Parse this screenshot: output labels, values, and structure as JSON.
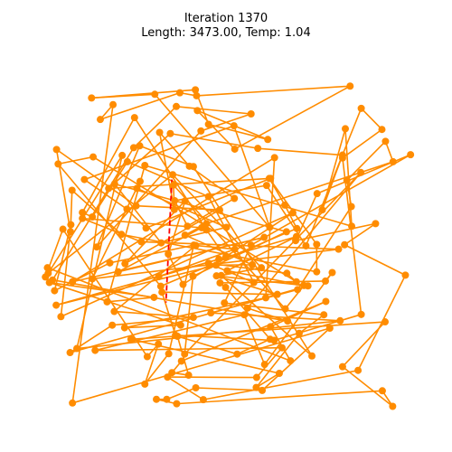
{
  "chart_data": {
    "type": "line",
    "title_line1": "Iteration 1370",
    "title_line2": "Length: 3473.00, Temp: 1.04",
    "route_color": "#ff8c00",
    "highlight_color": "#ff0000",
    "axes_visible": false,
    "xlim": [
      0,
      100
    ],
    "ylim": [
      0,
      100
    ],
    "tour_points": [
      [
        21.6,
        86.4
      ],
      [
        18.4,
        82.4
      ],
      [
        38.4,
        89.6
      ],
      [
        42.6,
        88.8
      ],
      [
        81.2,
        91.4
      ],
      [
        52.2,
        74.4
      ],
      [
        42.8,
        84.8
      ],
      [
        60.5,
        77.0
      ],
      [
        45.6,
        81.1
      ],
      [
        42.3,
        90.4
      ],
      [
        16.2,
        88.2
      ],
      [
        32.1,
        89.2
      ],
      [
        61.0,
        53.3
      ],
      [
        52.0,
        80.7
      ],
      [
        14.4,
        66.2
      ],
      [
        25.1,
        58.2
      ],
      [
        29.9,
        53.1
      ],
      [
        61.2,
        66.5
      ],
      [
        20.5,
        63.8
      ],
      [
        36.0,
        78.6
      ],
      [
        58.0,
        74.6
      ],
      [
        79.3,
        72.8
      ],
      [
        74.2,
        58.0
      ],
      [
        80.0,
        79.9
      ],
      [
        81.6,
        53.6
      ],
      [
        29.6,
        70.0
      ],
      [
        20.1,
        33.2
      ],
      [
        31.9,
        34.4
      ],
      [
        5.6,
        38.4
      ],
      [
        38.6,
        26.9
      ],
      [
        24.5,
        26.2
      ],
      [
        60.0,
        34.3
      ],
      [
        62.2,
        72.1
      ],
      [
        11.4,
        38.6
      ],
      [
        59.6,
        50.6
      ],
      [
        22.9,
        41.3
      ],
      [
        43.9,
        53.2
      ],
      [
        13.9,
        55.7
      ],
      [
        28.7,
        49.4
      ],
      [
        78.3,
        47.4
      ],
      [
        16.4,
        39.4
      ],
      [
        28.4,
        65.7
      ],
      [
        27.6,
        63.8
      ],
      [
        50.1,
        53.3
      ],
      [
        33.7,
        49.1
      ],
      [
        22.0,
        65.0
      ],
      [
        65.2,
        52.1
      ],
      [
        41.7,
        40.1
      ],
      [
        39.6,
        19.1
      ],
      [
        83.9,
        68.1
      ],
      [
        55.4,
        31.5
      ],
      [
        65.5,
        28.0
      ],
      [
        6.4,
        39.1
      ],
      [
        26.8,
        74.8
      ],
      [
        37.5,
        85.9
      ],
      [
        56.3,
        83.9
      ],
      [
        43.7,
        79.3
      ],
      [
        17.5,
        48.0
      ],
      [
        28.3,
        75.3
      ],
      [
        41.8,
        69.7
      ],
      [
        71.6,
        18.6
      ],
      [
        48.8,
        40.3
      ],
      [
        58.9,
        42.4
      ],
      [
        36.6,
        67.5
      ],
      [
        5.3,
        40.9
      ],
      [
        23.9,
        72.7
      ],
      [
        12.5,
        20.6
      ],
      [
        78.7,
        28.1
      ],
      [
        46.2,
        30.2
      ],
      [
        68.0,
        36.5
      ],
      [
        81.5,
        58.9
      ],
      [
        80.4,
        66.0
      ],
      [
        90.1,
        76.5
      ],
      [
        92.0,
        71.0
      ],
      [
        45.1,
        54.3
      ],
      [
        39.7,
        51.2
      ],
      [
        56.6,
        43.2
      ],
      [
        47.5,
        43.1
      ],
      [
        7.3,
        32.3
      ],
      [
        48.2,
        44.7
      ],
      [
        33.1,
        40.0
      ],
      [
        52.2,
        47.4
      ],
      [
        42.4,
        48.4
      ],
      [
        21.9,
        30.6
      ],
      [
        41.8,
        29.0
      ],
      [
        21.4,
        26.9
      ],
      [
        10.8,
        19.5
      ],
      [
        70.6,
        37.5
      ],
      [
        47.6,
        40.2
      ],
      [
        62.9,
        35.2
      ],
      [
        33.9,
        35.8
      ],
      [
        37.3,
        24.2
      ],
      [
        62.1,
        22.8
      ],
      [
        84.0,
        29.8
      ],
      [
        79.3,
        72.0
      ],
      [
        89.2,
        79.7
      ],
      [
        84.0,
        85.4
      ],
      [
        70.1,
        48.3
      ],
      [
        60.2,
        64.6
      ],
      [
        37.1,
        60.5
      ],
      [
        40.3,
        53.6
      ],
      [
        52.1,
        61.1
      ],
      [
        40.8,
        69.8
      ],
      [
        33.3,
        78.9
      ],
      [
        37.0,
        58.1
      ],
      [
        36.8,
        64.7
      ],
      [
        64.9,
        31.3
      ],
      [
        69.6,
        37.6
      ],
      [
        50.3,
        41.6
      ],
      [
        67.7,
        50.8
      ],
      [
        49.9,
        45.2
      ],
      [
        45.1,
        52.6
      ],
      [
        27.0,
        82.9
      ],
      [
        13.9,
        57.3
      ],
      [
        16.4,
        56.1
      ],
      [
        25.2,
        71.0
      ],
      [
        45.6,
        61.6
      ],
      [
        57.0,
        38.4
      ],
      [
        45.6,
        43.6
      ],
      [
        65.3,
        40.9
      ],
      [
        67.7,
        38.6
      ],
      [
        16.6,
        72.3
      ],
      [
        7.8,
        70.4
      ],
      [
        33.6,
        37.4
      ],
      [
        67.8,
        53.0
      ],
      [
        64.8,
        59.3
      ],
      [
        60.9,
        66.5
      ],
      [
        72.8,
        48.7
      ],
      [
        72.8,
        41.3
      ],
      [
        23.7,
        51.4
      ],
      [
        11.3,
        63.3
      ],
      [
        10.9,
        52.1
      ],
      [
        7.4,
        74.3
      ],
      [
        27.4,
        59.1
      ],
      [
        48.4,
        58.0
      ],
      [
        24.6,
        43.5
      ],
      [
        39.7,
        60.4
      ],
      [
        35.5,
        46.1
      ],
      [
        39.2,
        37.9
      ],
      [
        66.8,
        57.2
      ],
      [
        8.5,
        29.2
      ],
      [
        11.0,
        54.0
      ],
      [
        6.9,
        36.2
      ],
      [
        20.8,
        43.7
      ],
      [
        41.9,
        48.5
      ],
      [
        35.6,
        19.2
      ],
      [
        29.6,
        11.0
      ],
      [
        33.0,
        21.8
      ],
      [
        30.2,
        18.4
      ],
      [
        9.0,
        52.8
      ],
      [
        4.6,
        39.9
      ],
      [
        5.1,
        42.4
      ],
      [
        66.2,
        17.3
      ],
      [
        61.2,
        26.5
      ],
      [
        75.1,
        33.3
      ],
      [
        38.8,
        17.2
      ],
      [
        36.4,
        14.1
      ],
      [
        40.6,
        13.4
      ],
      [
        37.8,
        23.9
      ],
      [
        52.8,
        19.1
      ],
      [
        61.1,
        23.1
      ],
      [
        49.9,
        37.1
      ],
      [
        48.5,
        38.3
      ],
      [
        75.0,
        38.8
      ],
      [
        76.7,
        41.1
      ],
      [
        59.7,
        16.3
      ],
      [
        54.6,
        29.7
      ],
      [
        17.1,
        20.1
      ],
      [
        64.1,
        20.8
      ],
      [
        57.7,
        12.8
      ],
      [
        35.3,
        12.9
      ],
      [
        44.3,
        6.8
      ],
      [
        83.2,
        14.7
      ],
      [
        95.1,
        40.4
      ],
      [
        79.8,
        48.6
      ],
      [
        87.6,
        54.3
      ],
      [
        67.5,
        49.7
      ],
      [
        72.9,
        62.4
      ],
      [
        96.4,
        72.9
      ],
      [
        56.3,
        48.5
      ],
      [
        49.6,
        32.9
      ],
      [
        74.6,
        29.7
      ],
      [
        68.4,
        24.7
      ],
      [
        57.6,
        10.1
      ],
      [
        63.4,
        13.9
      ],
      [
        26.1,
        23.1
      ],
      [
        90.0,
        27.8
      ],
      [
        79.3,
        15.7
      ],
      [
        91.9,
        5.0
      ],
      [
        89.3,
        9.2
      ],
      [
        37.6,
        5.7
      ],
      [
        32.5,
        6.9
      ],
      [
        35.1,
        6.9
      ],
      [
        42.4,
        10.0
      ],
      [
        59.1,
        9.3
      ],
      [
        76.1,
        26.1
      ],
      [
        11.4,
        5.9
      ]
    ],
    "highlight_segment": [
      [
        36.5,
        68.4
      ],
      [
        34.9,
        33.0
      ]
    ]
  }
}
